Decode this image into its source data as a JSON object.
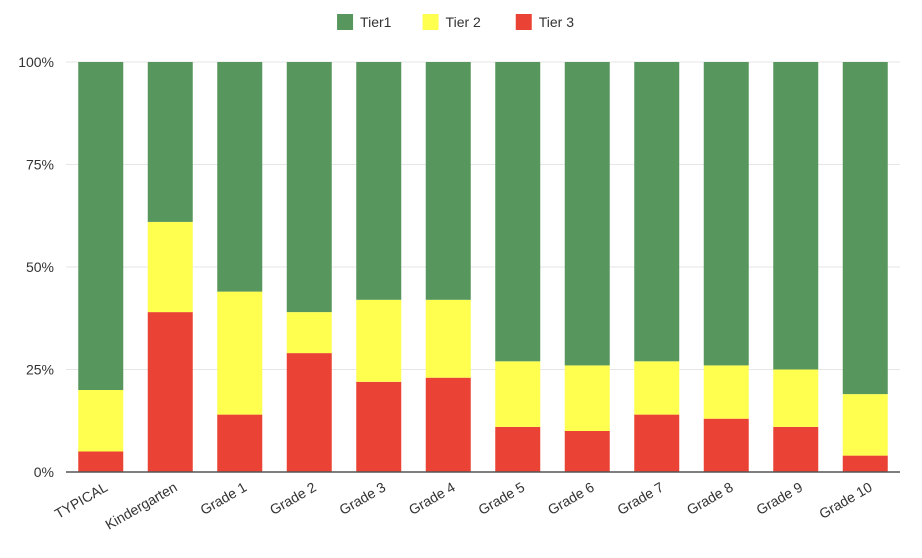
{
  "chart_data": {
    "type": "bar",
    "stacked": true,
    "categories": [
      "TYPICAL",
      "Kindergarten",
      "Grade 1",
      "Grade 2",
      "Grade 3",
      "Grade 4",
      "Grade 5",
      "Grade 6",
      "Grade 7",
      "Grade 8",
      "Grade 9",
      "Grade 10"
    ],
    "series": [
      {
        "name": "Tier 3",
        "color": "#ea4335",
        "values": [
          5,
          39,
          14,
          29,
          22,
          23,
          11,
          10,
          14,
          13,
          11,
          4
        ]
      },
      {
        "name": "Tier 2",
        "color": "#ffff4f",
        "values": [
          15,
          22,
          30,
          10,
          20,
          19,
          16,
          16,
          13,
          13,
          14,
          15
        ]
      },
      {
        "name": "Tier1",
        "color": "#57965c",
        "values": [
          80,
          39,
          56,
          61,
          58,
          58,
          73,
          74,
          73,
          74,
          75,
          81
        ]
      }
    ],
    "legend_order": [
      "Tier1",
      "Tier 2",
      "Tier 3"
    ],
    "legend_position": "top",
    "yticks": [
      "0%",
      "25%",
      "50%",
      "75%",
      "100%"
    ],
    "ylim": [
      0,
      100
    ],
    "grid": true,
    "title": "",
    "xlabel": "",
    "ylabel": ""
  }
}
